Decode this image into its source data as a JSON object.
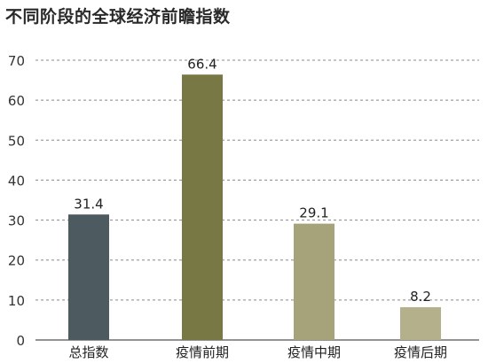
{
  "chart_data": {
    "type": "bar",
    "title": "不同阶段的全球经济前瞻指数",
    "categories": [
      "总指数",
      "疫情前期",
      "疫情中期",
      "疫情后期"
    ],
    "values": [
      31.4,
      66.4,
      29.1,
      8.2
    ],
    "value_labels": [
      "31.4",
      "66.4",
      "29.1",
      "8.2"
    ],
    "bar_colors": [
      "#4d5a60",
      "#777844",
      "#a6a27a",
      "#b4b08c"
    ],
    "ylim": [
      0,
      70
    ],
    "yticks": [
      0,
      10,
      20,
      30,
      40,
      50,
      60,
      70
    ],
    "xlabel": "",
    "ylabel": "",
    "grid": true,
    "legend": "none"
  }
}
